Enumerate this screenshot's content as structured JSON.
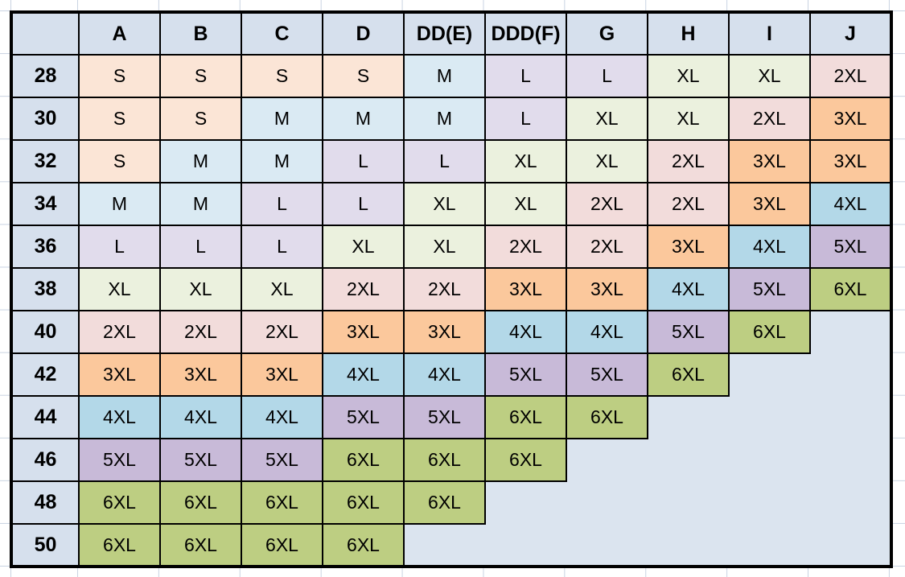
{
  "colors": {
    "header_bg": "#D6E0ED",
    "empty_bg": "#DBE4EF",
    "grid_line": "#C9D3E2",
    "cell_border": "#000000",
    "text": "#000000",
    "size_fills": {
      "S": "#FBE5D6",
      "M": "#DAEAF3",
      "L": "#E1DCEC",
      "XL": "#EBF1DE",
      "2XL": "#F2DCDB",
      "3XL": "#FBC89C",
      "4XL": "#B3D8E8",
      "5XL": "#C8BAD8",
      "6XL": "#BDCE82"
    }
  },
  "chart_data": {
    "type": "table",
    "corner_label": "",
    "columns": [
      "A",
      "B",
      "C",
      "D",
      "DD(E)",
      "DDD(F)",
      "G",
      "H",
      "I",
      "J"
    ],
    "rows": [
      {
        "band": "28",
        "cells": [
          "S",
          "S",
          "S",
          "S",
          "M",
          "L",
          "L",
          "XL",
          "XL",
          "2XL"
        ]
      },
      {
        "band": "30",
        "cells": [
          "S",
          "S",
          "M",
          "M",
          "M",
          "L",
          "XL",
          "XL",
          "2XL",
          "3XL"
        ]
      },
      {
        "band": "32",
        "cells": [
          "S",
          "M",
          "M",
          "L",
          "L",
          "XL",
          "XL",
          "2XL",
          "3XL",
          "3XL"
        ]
      },
      {
        "band": "34",
        "cells": [
          "M",
          "M",
          "L",
          "L",
          "XL",
          "XL",
          "2XL",
          "2XL",
          "3XL",
          "4XL"
        ]
      },
      {
        "band": "36",
        "cells": [
          "L",
          "L",
          "L",
          "XL",
          "XL",
          "2XL",
          "2XL",
          "3XL",
          "4XL",
          "5XL"
        ]
      },
      {
        "band": "38",
        "cells": [
          "XL",
          "XL",
          "XL",
          "2XL",
          "2XL",
          "3XL",
          "3XL",
          "4XL",
          "5XL",
          "6XL"
        ]
      },
      {
        "band": "40",
        "cells": [
          "2XL",
          "2XL",
          "2XL",
          "3XL",
          "3XL",
          "4XL",
          "4XL",
          "5XL",
          "6XL",
          null
        ]
      },
      {
        "band": "42",
        "cells": [
          "3XL",
          "3XL",
          "3XL",
          "4XL",
          "4XL",
          "5XL",
          "5XL",
          "6XL",
          null,
          null
        ]
      },
      {
        "band": "44",
        "cells": [
          "4XL",
          "4XL",
          "4XL",
          "5XL",
          "5XL",
          "6XL",
          "6XL",
          null,
          null,
          null
        ]
      },
      {
        "band": "46",
        "cells": [
          "5XL",
          "5XL",
          "5XL",
          "6XL",
          "6XL",
          "6XL",
          null,
          null,
          null,
          null
        ]
      },
      {
        "band": "48",
        "cells": [
          "6XL",
          "6XL",
          "6XL",
          "6XL",
          "6XL",
          null,
          null,
          null,
          null,
          null
        ]
      },
      {
        "band": "50",
        "cells": [
          "6XL",
          "6XL",
          "6XL",
          "6XL",
          null,
          null,
          null,
          null,
          null,
          null
        ]
      }
    ]
  }
}
